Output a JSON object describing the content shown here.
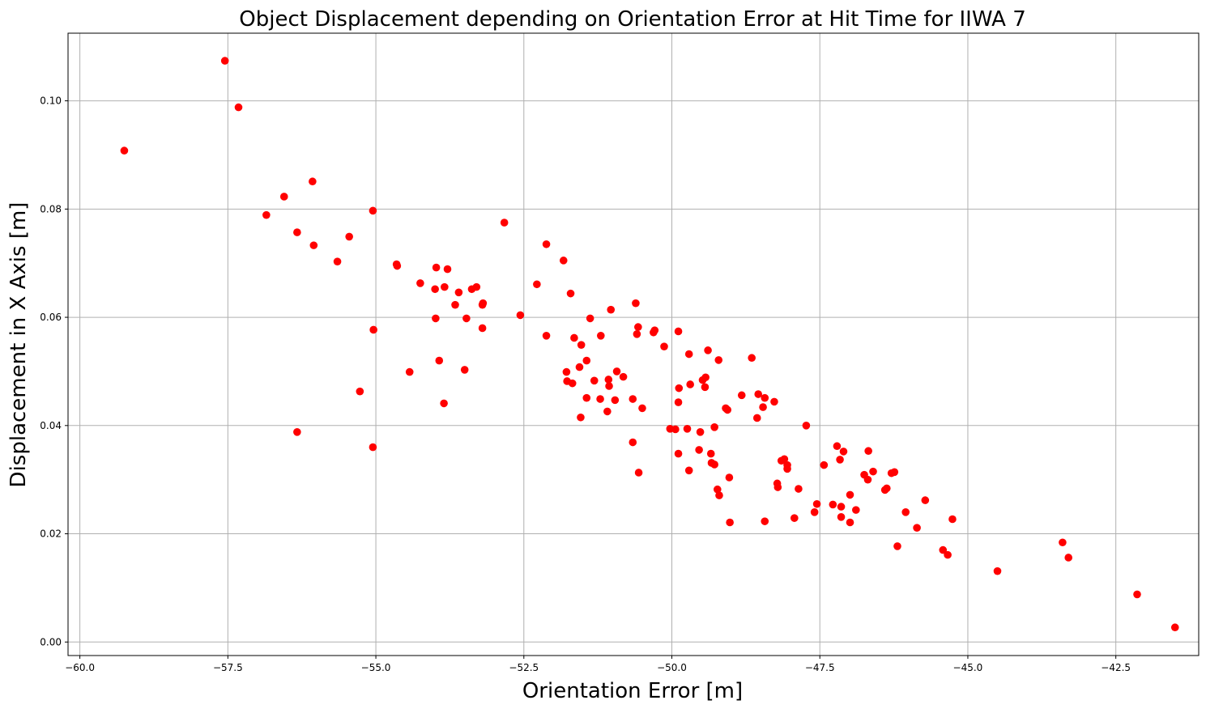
{
  "chart_data": {
    "type": "scatter",
    "title": "Object Displacement depending on Orientation Error at Hit Time for IIWA 7",
    "xlabel": "Orientation Error [m]",
    "ylabel": "Displacement in X Axis [m]",
    "xlim": [
      -60.2,
      -41.1
    ],
    "ylim": [
      -0.0025,
      0.1125
    ],
    "xticks": [
      -60.0,
      -57.5,
      -55.0,
      -52.5,
      -50.0,
      -47.5,
      -45.0,
      -42.5
    ],
    "xtick_labels": [
      "−60.0",
      "−57.5",
      "−55.0",
      "−52.5",
      "−50.0",
      "−47.5",
      "−45.0",
      "−42.5"
    ],
    "yticks": [
      0.0,
      0.02,
      0.04,
      0.06,
      0.08,
      0.1
    ],
    "ytick_labels": [
      "0.00",
      "0.02",
      "0.04",
      "0.06",
      "0.08",
      "0.10"
    ],
    "grid": true,
    "marker_color": "#ff0000",
    "points": [
      [
        -59.25,
        0.0908
      ],
      [
        -57.55,
        0.1074
      ],
      [
        -57.32,
        0.0988
      ],
      [
        -56.85,
        0.0789
      ],
      [
        -56.55,
        0.0823
      ],
      [
        -56.33,
        0.0757
      ],
      [
        -56.33,
        0.0388
      ],
      [
        -56.07,
        0.0851
      ],
      [
        -56.05,
        0.0733
      ],
      [
        -55.65,
        0.0703
      ],
      [
        -55.45,
        0.0749
      ],
      [
        -55.27,
        0.0463
      ],
      [
        -55.05,
        0.0797
      ],
      [
        -55.04,
        0.0577
      ],
      [
        -55.05,
        0.036
      ],
      [
        -54.65,
        0.0698
      ],
      [
        -54.64,
        0.0695
      ],
      [
        -54.43,
        0.0499
      ],
      [
        -54.25,
        0.0663
      ],
      [
        -54.0,
        0.0652
      ],
      [
        -53.98,
        0.0692
      ],
      [
        -53.99,
        0.0598
      ],
      [
        -53.93,
        0.052
      ],
      [
        -53.84,
        0.0656
      ],
      [
        -53.85,
        0.0441
      ],
      [
        -53.79,
        0.0689
      ],
      [
        -53.66,
        0.0623
      ],
      [
        -53.6,
        0.0646
      ],
      [
        -53.5,
        0.0503
      ],
      [
        -53.47,
        0.0598
      ],
      [
        -53.38,
        0.0652
      ],
      [
        -53.3,
        0.0656
      ],
      [
        -53.2,
        0.0623
      ],
      [
        -53.19,
        0.0626
      ],
      [
        -53.2,
        0.058
      ],
      [
        -52.83,
        0.0775
      ],
      [
        -52.56,
        0.0604
      ],
      [
        -52.28,
        0.0661
      ],
      [
        -52.12,
        0.0735
      ],
      [
        -52.12,
        0.0566
      ],
      [
        -51.83,
        0.0705
      ],
      [
        -51.78,
        0.0499
      ],
      [
        -51.77,
        0.0482
      ],
      [
        -51.71,
        0.0644
      ],
      [
        -51.68,
        0.0478
      ],
      [
        -51.65,
        0.0562
      ],
      [
        -51.56,
        0.0508
      ],
      [
        -51.53,
        0.0549
      ],
      [
        -51.54,
        0.0415
      ],
      [
        -51.44,
        0.052
      ],
      [
        -51.44,
        0.0451
      ],
      [
        -51.38,
        0.0598
      ],
      [
        -51.31,
        0.0483
      ],
      [
        -51.2,
        0.0566
      ],
      [
        -51.21,
        0.0449
      ],
      [
        -51.07,
        0.0485
      ],
      [
        -51.06,
        0.0473
      ],
      [
        -51.09,
        0.0426
      ],
      [
        -51.03,
        0.0614
      ],
      [
        -50.96,
        0.0447
      ],
      [
        -50.93,
        0.05
      ],
      [
        -50.82,
        0.049
      ],
      [
        -50.66,
        0.0449
      ],
      [
        -50.66,
        0.0369
      ],
      [
        -50.61,
        0.0626
      ],
      [
        -50.59,
        0.0569
      ],
      [
        -50.57,
        0.0582
      ],
      [
        -50.56,
        0.0313
      ],
      [
        -50.5,
        0.0432
      ],
      [
        -50.31,
        0.0572
      ],
      [
        -50.29,
        0.0576
      ],
      [
        -50.13,
        0.0546
      ],
      [
        -50.03,
        0.0394
      ],
      [
        -49.94,
        0.0393
      ],
      [
        -49.89,
        0.0574
      ],
      [
        -49.88,
        0.0469
      ],
      [
        -49.89,
        0.0443
      ],
      [
        -49.89,
        0.0348
      ],
      [
        -49.74,
        0.0394
      ],
      [
        -49.71,
        0.0532
      ],
      [
        -49.69,
        0.0476
      ],
      [
        -49.71,
        0.0317
      ],
      [
        -49.54,
        0.0355
      ],
      [
        -49.52,
        0.0388
      ],
      [
        -49.48,
        0.0484
      ],
      [
        -49.43,
        0.0489
      ],
      [
        -49.44,
        0.0471
      ],
      [
        -49.39,
        0.0539
      ],
      [
        -49.34,
        0.0348
      ],
      [
        -49.33,
        0.0331
      ],
      [
        -49.28,
        0.0397
      ],
      [
        -49.28,
        0.0328
      ],
      [
        -49.23,
        0.0282
      ],
      [
        -49.21,
        0.0521
      ],
      [
        -49.2,
        0.0271
      ],
      [
        -49.09,
        0.0432
      ],
      [
        -49.06,
        0.0429
      ],
      [
        -49.03,
        0.0304
      ],
      [
        -49.02,
        0.0221
      ],
      [
        -48.82,
        0.0456
      ],
      [
        -48.65,
        0.0525
      ],
      [
        -48.56,
        0.0414
      ],
      [
        -48.54,
        0.0458
      ],
      [
        -48.46,
        0.0434
      ],
      [
        -48.43,
        0.0451
      ],
      [
        -48.43,
        0.0223
      ],
      [
        -48.27,
        0.0444
      ],
      [
        -48.22,
        0.0293
      ],
      [
        -48.21,
        0.0286
      ],
      [
        -48.15,
        0.0335
      ],
      [
        -48.1,
        0.0338
      ],
      [
        -48.05,
        0.0327
      ],
      [
        -48.05,
        0.032
      ],
      [
        -47.93,
        0.0229
      ],
      [
        -47.86,
        0.0283
      ],
      [
        -47.73,
        0.04
      ],
      [
        -47.59,
        0.024
      ],
      [
        -47.55,
        0.0255
      ],
      [
        -47.43,
        0.0327
      ],
      [
        -47.28,
        0.0254
      ],
      [
        -47.21,
        0.0362
      ],
      [
        -47.16,
        0.0337
      ],
      [
        -47.14,
        0.025
      ],
      [
        -47.14,
        0.0231
      ],
      [
        -47.1,
        0.0352
      ],
      [
        -46.99,
        0.0272
      ],
      [
        -46.99,
        0.0221
      ],
      [
        -46.89,
        0.0244
      ],
      [
        -46.75,
        0.0309
      ],
      [
        -46.69,
        0.03
      ],
      [
        -46.68,
        0.0353
      ],
      [
        -46.6,
        0.0315
      ],
      [
        -46.4,
        0.0281
      ],
      [
        -46.37,
        0.0284
      ],
      [
        -46.29,
        0.0312
      ],
      [
        -46.24,
        0.0314
      ],
      [
        -46.19,
        0.0177
      ],
      [
        -46.05,
        0.024
      ],
      [
        -45.86,
        0.0211
      ],
      [
        -45.72,
        0.0262
      ],
      [
        -45.42,
        0.017
      ],
      [
        -45.34,
        0.0161
      ],
      [
        -45.26,
        0.0227
      ],
      [
        -44.5,
        0.0131
      ],
      [
        -43.4,
        0.0184
      ],
      [
        -43.3,
        0.0156
      ],
      [
        -42.14,
        0.0088
      ],
      [
        -41.5,
        0.0027
      ]
    ]
  }
}
